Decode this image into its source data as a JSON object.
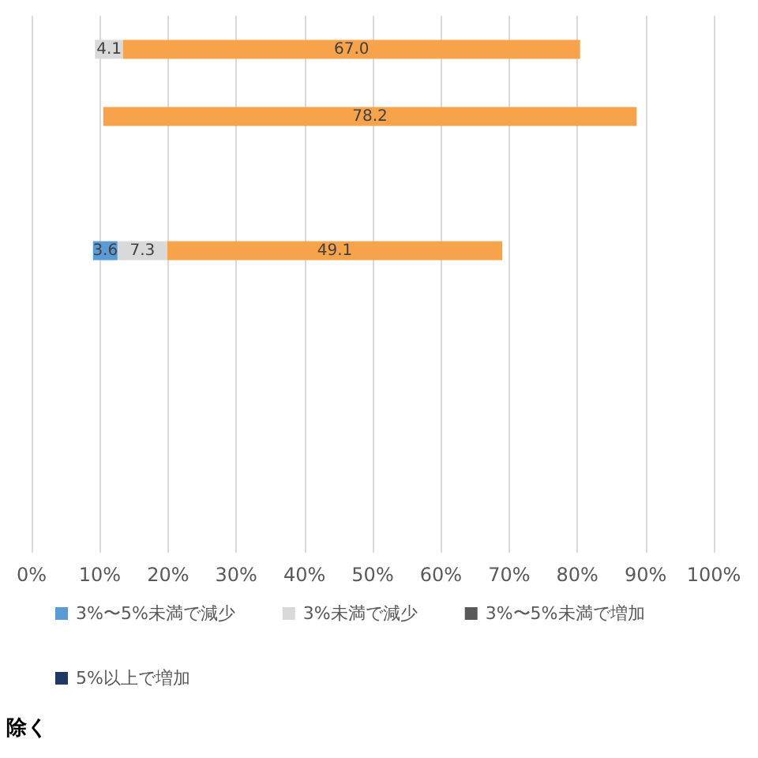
{
  "chart_data": {
    "type": "bar",
    "orientation": "horizontal",
    "categories": [
      null,
      null,
      null,
      null,
      null,
      null,
      null,
      null
    ],
    "series": [
      {
        "name": "3%〜5%未満で減少",
        "color": "#5b9bd5",
        "values": [
          null,
          null,
          null,
          3.6,
          null,
          null,
          null,
          null
        ],
        "base": [
          null,
          null,
          null,
          9.0,
          null,
          null,
          null,
          null
        ],
        "value_labels": [
          null,
          null,
          null,
          "3.6",
          null,
          null,
          null,
          null
        ]
      },
      {
        "name": "3%未満で減少",
        "color": "#d9d9d9",
        "values": [
          4.1,
          null,
          null,
          7.3,
          null,
          null,
          null,
          null
        ],
        "base": [
          9.3,
          null,
          null,
          12.6,
          null,
          null,
          null,
          null
        ],
        "value_labels": [
          "4.1",
          null,
          null,
          "7.3",
          null,
          null,
          null,
          null
        ]
      },
      {
        "color": "#f7a34b",
        "values": [
          67.0,
          78.2,
          null,
          49.1,
          null,
          null,
          null,
          null
        ],
        "base": [
          13.4,
          10.5,
          null,
          19.9,
          null,
          null,
          null,
          null
        ],
        "value_labels": [
          "67.0",
          "78.2",
          null,
          "49.1",
          null,
          null,
          null,
          null
        ]
      },
      {
        "name": "3%〜5%未満で増加",
        "color": "#595959",
        "values": [
          null,
          null,
          null,
          null,
          null,
          null,
          null,
          null
        ],
        "base": [
          null,
          null,
          null,
          null,
          null,
          null,
          null,
          null
        ]
      },
      {
        "name": "5%以上で増加",
        "color": "#1f3864",
        "values": [
          null,
          null,
          null,
          null,
          null,
          null,
          null,
          null
        ],
        "base": [
          null,
          null,
          null,
          null,
          null,
          null,
          null,
          null
        ]
      }
    ],
    "xlim": [
      0,
      100
    ],
    "xticks": [
      {
        "value": 0,
        "label": "0%"
      },
      {
        "value": 10,
        "label": "10%"
      },
      {
        "value": 20,
        "label": "20%"
      },
      {
        "value": 30,
        "label": "30%"
      },
      {
        "value": 40,
        "label": "40%"
      },
      {
        "value": 50,
        "label": "50%"
      },
      {
        "value": 60,
        "label": "60%"
      },
      {
        "value": 70,
        "label": "70%"
      },
      {
        "value": 80,
        "label": "80%"
      },
      {
        "value": 90,
        "label": "90%"
      },
      {
        "value": 100,
        "label": "100%"
      }
    ],
    "grid": "x",
    "legend": "bottom",
    "annotations": [
      "除く"
    ]
  }
}
